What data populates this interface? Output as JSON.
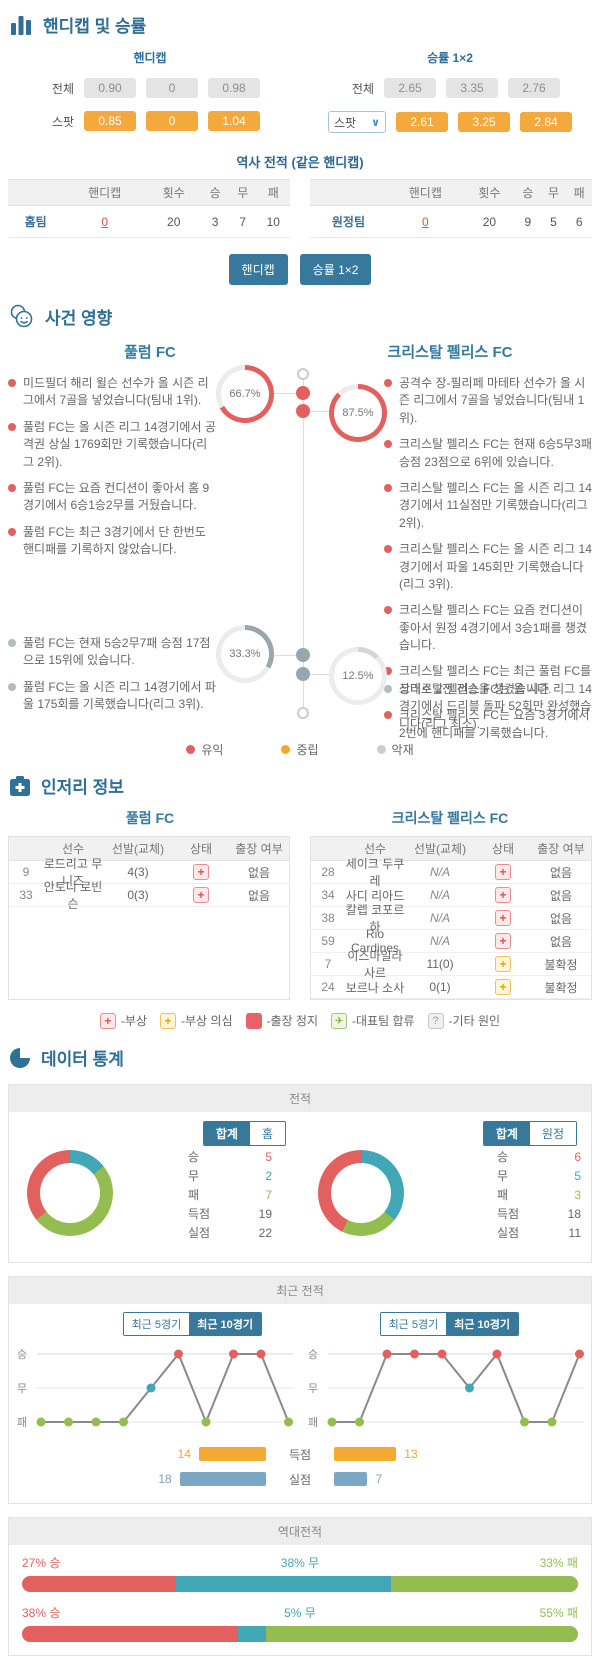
{
  "colors": {
    "accent_teal": "#37789b",
    "heading_blue": "#2f6e96",
    "orange": "#f3a93c",
    "win_red": "#e2615e",
    "draw_teal": "#41a6b5",
    "loss_green": "#94bd4f",
    "conceded_blue": "#7ba7c4",
    "neutral_gray": "#9aa6ab"
  },
  "icons": {
    "odds": "bar-chart-icon",
    "events": "faces-icon",
    "injury": "medkit-icon",
    "stats": "pie-chart-icon"
  },
  "odds": {
    "title": "핸디캡 및 승률",
    "handicap_title": "핸디캡",
    "winrate_title": "승률 1×2",
    "total_label": "전체",
    "spot_label": "스팟",
    "handicap_total": [
      "0.90",
      "0",
      "0.98"
    ],
    "handicap_spot": [
      "0.85",
      "0",
      "1.04"
    ],
    "winrate_total": [
      "2.65",
      "3.35",
      "2.76"
    ],
    "winrate_spot": [
      "2.61",
      "3.25",
      "2.84"
    ]
  },
  "history": {
    "title": "역사 전적 (같은 핸디캡)",
    "headers": [
      "핸디캡",
      "횟수",
      "승",
      "무",
      "패"
    ],
    "home": {
      "team": "홈팀",
      "handicap": "0",
      "count": "20",
      "win": "3",
      "draw": "7",
      "loss": "10"
    },
    "away": {
      "team": "원정팀",
      "handicap": "0",
      "count": "20",
      "win": "9",
      "draw": "5",
      "loss": "6"
    },
    "btn_handicap": "핸디캡",
    "btn_winrate": "승률 1×2"
  },
  "events": {
    "title": "사건 영향",
    "home_team": "풀럼 FC",
    "away_team": "크리스탈 펠리스 FC",
    "home_positive_pct": "66.7%",
    "away_positive_pct": "87.5%",
    "home_negative_pct": "33.3%",
    "away_negative_pct": "12.5%",
    "home_positive": [
      "미드필더 해리 윌슨 선수가 올 시즌 리그에서 7골을 넣었습니다(팀내 1위).",
      "풀럼 FC는 올 시즌 리그 14경기에서 공격권 상실 1769회만 기록했습니다(리그 2위).",
      "풀럼 FC는 요즘 컨디션이 좋아서 홈 9경기에서 6승1승2무를 거뒀습니다.",
      "풀럼 FC는 최근 3경기에서 단 한번도 핸디패를 기록하지 않았습니다."
    ],
    "away_positive": [
      "공격수 장-필리페 마테타 선수가 올 시즌 리그에서 7골을 넣었습니다(팀내 1위).",
      "크리스탈 펠리스 FC는 현재 6승5무3패 승점 23점으로 6위에 있습니다.",
      "크리스탈 펠리스 FC는 올 시즌 리그 14경기에서 11실점만 기록했습니다(리그 2위).",
      "크리스탈 펠리스 FC는 올 시즌 리그 14경기에서 파울 145회만 기록했습니다(리그 3위).",
      "크리스탈 펠리스 FC는 요즘 컨디션이 좋아서 원정 4경기에서 3승1패를 챙겼습니다.",
      "크리스탈 펠리스 FC는 최근 풀럼 FC를 상대로 2전 전승을 챙겼습니다.",
      "크리스탈 펠리스 FC는 요즘 3경기에서 2번에 핸디패를 기록했습니다."
    ],
    "home_negative": [
      "풀럼 FC는 현재 5승2무7패 승점 17점으로 15위에 있습니다.",
      "풀럼 FC는 올 시즌 리그 14경기에서 파울 175회를 기록했습니다(리그 3위)."
    ],
    "away_negative": [
      "크리스탈 펠리스 FC는 올 시즌 리그 14경기에서 드리블 돌파 52회만 완성했습니다(리그 최소)."
    ],
    "legend": [
      {
        "label": "유익",
        "color": "#e2615e"
      },
      {
        "label": "중립",
        "color": "#f0a830"
      },
      {
        "label": "악재",
        "color": "#c9ced1"
      }
    ]
  },
  "injury": {
    "title": "인저리 정보",
    "home_team": "풀럼 FC",
    "away_team": "크리스탈 펠리스 FC",
    "headers": [
      "선수",
      "선발(교체)",
      "상태",
      "출장 여부"
    ],
    "home_rows": [
      {
        "no": "9",
        "name": "로드리고 무니즈",
        "starts": "4(3)",
        "status": "injury",
        "availability": "없음"
      },
      {
        "no": "33",
        "name": "안토니 로빈슨",
        "starts": "0(3)",
        "status": "injury",
        "availability": "없음"
      }
    ],
    "away_rows": [
      {
        "no": "28",
        "name": "세이크 두쿠레",
        "starts": "N/A",
        "status": "injury",
        "availability": "없음"
      },
      {
        "no": "34",
        "name": "사디 리아드",
        "starts": "N/A",
        "status": "injury",
        "availability": "없음"
      },
      {
        "no": "38",
        "name": "칼렙 코포르하",
        "starts": "N/A",
        "status": "injury",
        "availability": "없음"
      },
      {
        "no": "59",
        "name": "Rio Cardines",
        "starts": "N/A",
        "status": "injury",
        "availability": "없음"
      },
      {
        "no": "7",
        "name": "이스마일라 사르",
        "starts": "11(0)",
        "status": "doubt",
        "availability": "불확정"
      },
      {
        "no": "24",
        "name": "보르나 소사",
        "starts": "0(1)",
        "status": "doubt",
        "availability": "불확정"
      }
    ],
    "legend": [
      {
        "icon": "injury-plus-red-icon",
        "label": "-부상"
      },
      {
        "icon": "doubt-plus-yellow-icon",
        "label": "-부상 의심"
      },
      {
        "icon": "suspended-square-red-icon",
        "label": "-출장 정지"
      },
      {
        "icon": "national-team-plane-icon",
        "label": "-대표팀 합류"
      },
      {
        "icon": "other-question-icon",
        "label": "-기타 원인"
      }
    ]
  },
  "stats": {
    "title": "데이터 통계",
    "record": {
      "panel_title": "전적",
      "home_tabs": [
        "합계",
        "홈"
      ],
      "away_tabs": [
        "합계",
        "원정"
      ],
      "row_labels": [
        "승",
        "무",
        "패",
        "득점",
        "실점"
      ],
      "home": {
        "win": 5,
        "draw": 2,
        "loss": 7,
        "scored": 19,
        "conceded": 22
      },
      "away": {
        "win": 6,
        "draw": 5,
        "loss": 3,
        "scored": 18,
        "conceded": 11
      }
    },
    "recent": {
      "panel_title": "최근 전적",
      "tabs": [
        "최근 5경기",
        "최근 10경기"
      ],
      "axis_labels": [
        "승",
        "무",
        "패"
      ],
      "home_results": [
        "L",
        "L",
        "L",
        "L",
        "D",
        "W",
        "L",
        "W",
        "W",
        "L"
      ],
      "away_results": [
        "L",
        "L",
        "W",
        "W",
        "W",
        "D",
        "W",
        "L",
        "L",
        "W"
      ],
      "scored_label": "득점",
      "conceded_label": "실점",
      "home_scored": 14,
      "home_conceded": 18,
      "away_scored": 13,
      "away_conceded": 7
    },
    "h2h": {
      "panel_title": "역대전적",
      "rows": [
        {
          "win_label": "27% 승",
          "draw_label": "38% 무",
          "loss_label": "33% 패",
          "win": 27,
          "draw": 38,
          "loss": 33
        },
        {
          "win_label": "38% 승",
          "draw_label": "5% 무",
          "loss_label": "55% 패",
          "win": 38,
          "draw": 5,
          "loss": 55
        }
      ]
    }
  }
}
